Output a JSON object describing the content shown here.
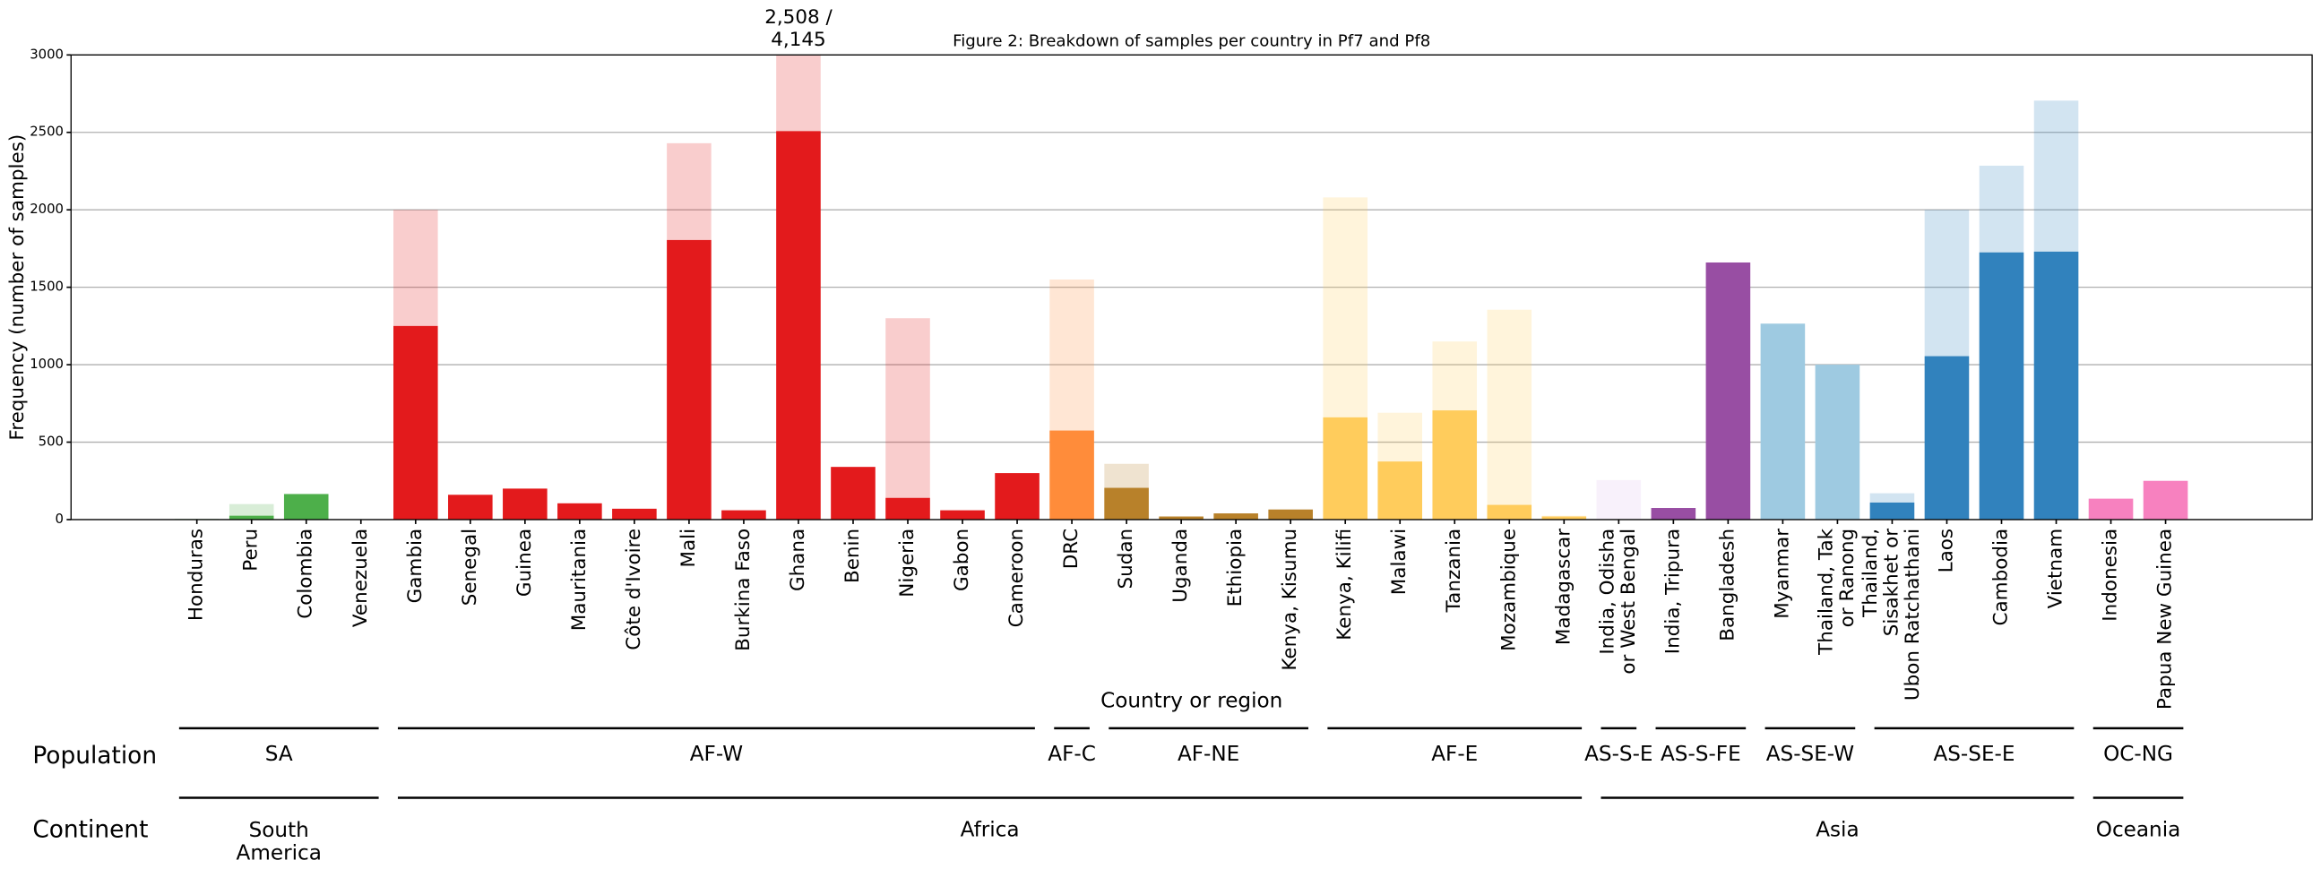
{
  "chart_data": {
    "type": "bar",
    "title": "Figure 2: Breakdown of samples per country in Pf7 and Pf8",
    "xlabel": "Country or region",
    "ylabel": "Frequency (number of samples)",
    "categories": [
      "Honduras",
      "Peru",
      "Colombia",
      "Venezuela",
      "Gambia",
      "Senegal",
      "Guinea",
      "Mauritania",
      "Côte d'Ivoire",
      "Mali",
      "Burkina Faso",
      "Ghana",
      "Benin",
      "Nigeria",
      "Gabon",
      "Cameroon",
      "DRC",
      "Sudan",
      "Uganda",
      "Ethiopia",
      "Kenya, Kisumu",
      "Kenya, Kilifi",
      "Malawi",
      "Tanzania",
      "Mozambique",
      "Madagascar",
      "India, Odisha\nor West Bengal",
      "India, Tripura",
      "Bangladesh",
      "Myanmar",
      "Thailand, Tak\nor Ranong",
      "Thailand,\nSisakhet or\nUbon Ratchathani",
      "Laos",
      "Cambodia",
      "Vietnam",
      "Indonesia",
      "Papua New Guinea"
    ],
    "colors": [
      "#4daf4a",
      "#4daf4a",
      "#4daf4a",
      "#4daf4a",
      "#e31a1c",
      "#e31a1c",
      "#e31a1c",
      "#e31a1c",
      "#e31a1c",
      "#e31a1c",
      "#e31a1c",
      "#e31a1c",
      "#e31a1c",
      "#e31a1c",
      "#e31a1c",
      "#e31a1c",
      "#ff8c3a",
      "#b8812a",
      "#b8812a",
      "#b8812a",
      "#b8812a",
      "#ffcc5c",
      "#ffcc5c",
      "#ffcc5c",
      "#ffcc5c",
      "#ffcc5c",
      "#dfc0eb",
      "#984ea3",
      "#984ea3",
      "#9ecae1",
      "#9ecae1",
      "#3182bd",
      "#3182bd",
      "#3182bd",
      "#3182bd",
      "#f781bf",
      "#f781bf"
    ],
    "series": [
      {
        "values": [
          3,
          25,
          165,
          1,
          1250,
          160,
          200,
          105,
          70,
          1805,
          60,
          2508,
          340,
          140,
          60,
          300,
          575,
          205,
          20,
          40,
          65,
          660,
          375,
          705,
          95,
          20,
          0,
          75,
          1660,
          1265,
          1000,
          110,
          1055,
          1725,
          1730,
          135,
          250
        ],
        "value_labels": [
          null,
          null,
          null,
          null,
          null,
          null,
          null,
          null,
          null,
          null,
          null,
          "2,508 /",
          null,
          null,
          null,
          null,
          null,
          null,
          null,
          null,
          null,
          null,
          null,
          null,
          null,
          null,
          null,
          null,
          null,
          null,
          null,
          null,
          null,
          null,
          null,
          null,
          null
        ]
      },
      {
        "values": [
          5,
          100,
          165,
          1,
          2000,
          160,
          200,
          105,
          70,
          2430,
          60,
          4145,
          340,
          1300,
          60,
          300,
          1550,
          360,
          20,
          40,
          65,
          2080,
          690,
          1150,
          1355,
          25,
          255,
          75,
          1660,
          1265,
          1000,
          170,
          2000,
          2285,
          2705,
          135,
          250
        ],
        "value_labels": [
          null,
          null,
          null,
          null,
          null,
          null,
          null,
          null,
          null,
          null,
          null,
          "4,145",
          null,
          null,
          null,
          null,
          null,
          null,
          null,
          null,
          null,
          null,
          null,
          null,
          null,
          null,
          null,
          null,
          null,
          null,
          null,
          null,
          null,
          null,
          null,
          null,
          null
        ]
      }
    ],
    "ylim": [
      0,
      3000
    ],
    "yticks": [
      0,
      500,
      1000,
      1500,
      2000,
      2500,
      3000
    ],
    "grid": true,
    "row_labels": [
      "Population",
      "Continent"
    ],
    "population": [
      "SA",
      "SA",
      "SA",
      "SA",
      "AF-W",
      "AF-W",
      "AF-W",
      "AF-W",
      "AF-W",
      "AF-W",
      "AF-W",
      "AF-W",
      "AF-W",
      "AF-W",
      "AF-W",
      "AF-W",
      "AF-C",
      "AF-NE",
      "AF-NE",
      "AF-NE",
      "AF-NE",
      "AF-E",
      "AF-E",
      "AF-E",
      "AF-E",
      "AF-E",
      "AS-S-E",
      "AS-S-FE",
      "AS-S-FE",
      "AS-SE-W",
      "AS-SE-W",
      "AS-SE-E",
      "AS-SE-E",
      "AS-SE-E",
      "AS-SE-E",
      "OC-NG",
      "OC-NG"
    ],
    "continent": [
      "South\nAmerica",
      "South\nAmerica",
      "South\nAmerica",
      "South\nAmerica",
      "Africa",
      "Africa",
      "Africa",
      "Africa",
      "Africa",
      "Africa",
      "Africa",
      "Africa",
      "Africa",
      "Africa",
      "Africa",
      "Africa",
      "Africa",
      "Africa",
      "Africa",
      "Africa",
      "Africa",
      "Africa",
      "Africa",
      "Africa",
      "Africa",
      "Africa",
      "Asia",
      "Asia",
      "Asia",
      "Asia",
      "Asia",
      "Asia",
      "Asia",
      "Asia",
      "Asia",
      "Oceania",
      "Oceania"
    ]
  }
}
